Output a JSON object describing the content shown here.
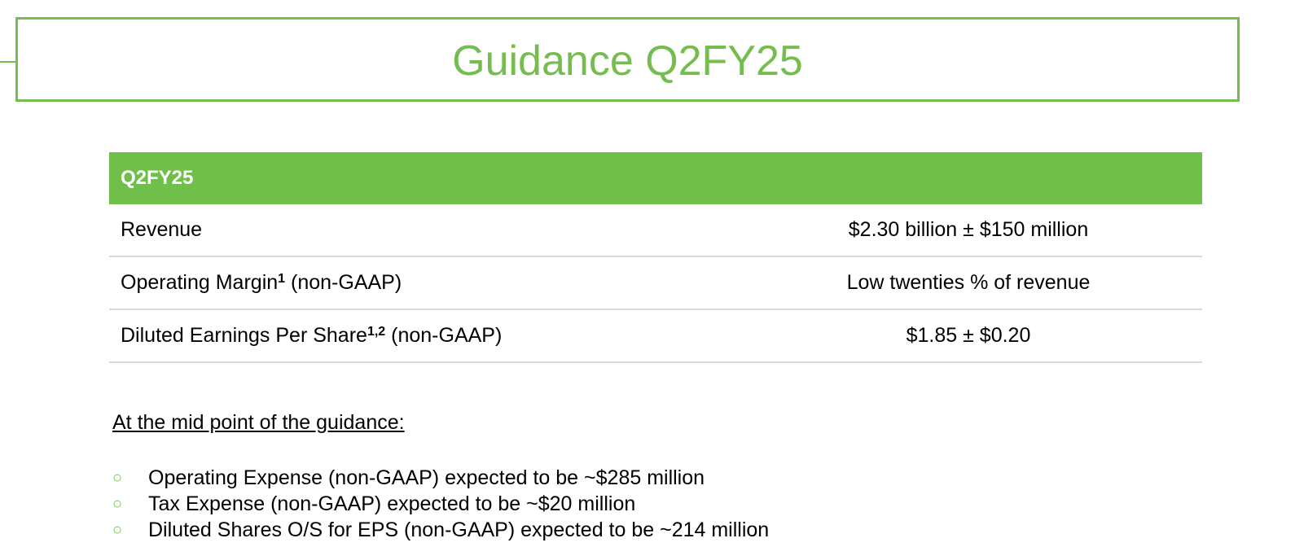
{
  "title": "Guidance Q2FY25",
  "table": {
    "header": "Q2FY25",
    "rows": [
      {
        "label": "Revenue",
        "sup": "",
        "suffix": "",
        "value": "$2.30 billion ±  $150 million"
      },
      {
        "label": "Operating Margin",
        "sup": "1",
        "suffix": " (non-GAAP)",
        "value": "Low twenties % of revenue"
      },
      {
        "label": "Diluted Earnings Per Share",
        "sup": "1,2",
        "suffix": " (non-GAAP)",
        "value": "$1.85 ± $0.20"
      }
    ]
  },
  "midpoint_heading": "At the mid point of the guidance:",
  "bullets": [
    {
      "icon": "circle-bullet-icon",
      "text": "Operating Expense (non-GAAP) expected to be ~$285 million"
    },
    {
      "icon": "circle-bullet-icon",
      "text": "Tax Expense (non-GAAP) expected to be ~$20 million"
    },
    {
      "icon": "circle-bullet-icon",
      "text": "Diluted Shares O/S for EPS (non-GAAP) expected to be ~214 million"
    }
  ],
  "colors": {
    "accent": "#76bd4f",
    "header_bg": "#6fbf4a",
    "row_divider": "#d9d9d9"
  }
}
